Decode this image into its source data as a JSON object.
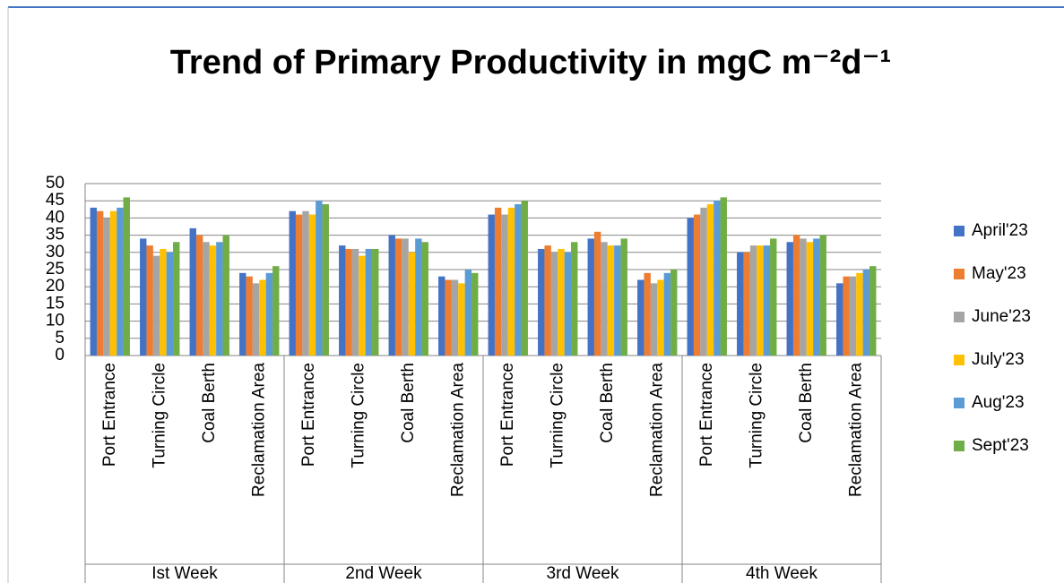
{
  "chart_data": {
    "type": "bar",
    "title": "Trend of Primary Productivity  in   mgC m⁻²d⁻¹",
    "categories": [
      "Port Entrance",
      "Turning Circle",
      "Coal Berth",
      "Reclamation Area",
      "Port Entrance",
      "Turning Circle",
      "Coal Berth",
      "Reclamation Area",
      "Port Entrance",
      "Turning Circle",
      "Coal Berth",
      "Reclamation Area",
      "Port Entrance",
      "Turning Circle",
      "Coal Berth",
      "Reclamation Area"
    ],
    "groups": [
      "Ist Week",
      "2nd Week",
      "3rd Week",
      "4th Week"
    ],
    "series": [
      {
        "name": "April'23",
        "color": "#4472c4",
        "values": [
          43,
          34,
          37,
          24,
          42,
          32,
          35,
          23,
          41,
          31,
          34,
          22,
          40,
          30,
          33,
          21
        ]
      },
      {
        "name": "May'23",
        "color": "#ed7d31",
        "values": [
          42,
          32,
          35,
          23,
          41,
          31,
          34,
          22,
          43,
          32,
          36,
          24,
          41,
          30,
          35,
          23
        ]
      },
      {
        "name": "June'23",
        "color": "#a5a5a5",
        "values": [
          40,
          29,
          33,
          21,
          42,
          31,
          34,
          22,
          41,
          30,
          33,
          21,
          43,
          32,
          34,
          23
        ]
      },
      {
        "name": "July'23",
        "color": "#ffc000",
        "values": [
          42,
          31,
          32,
          22,
          41,
          29,
          30,
          21,
          43,
          31,
          32,
          22,
          44,
          32,
          33,
          24
        ]
      },
      {
        "name": "Aug'23",
        "color": "#5b9bd5",
        "values": [
          43,
          30,
          33,
          24,
          45,
          31,
          34,
          25,
          44,
          30,
          32,
          24,
          45,
          32,
          34,
          25
        ]
      },
      {
        "name": "Sept'23",
        "color": "#70ad47",
        "values": [
          46,
          33,
          35,
          26,
          44,
          31,
          33,
          24,
          45,
          33,
          34,
          25,
          46,
          34,
          35,
          26
        ]
      }
    ],
    "ylim": [
      0,
      50
    ],
    "yticks": [
      0,
      5,
      10,
      15,
      20,
      25,
      30,
      35,
      40,
      45,
      50
    ],
    "grid": true,
    "legend": "right"
  }
}
